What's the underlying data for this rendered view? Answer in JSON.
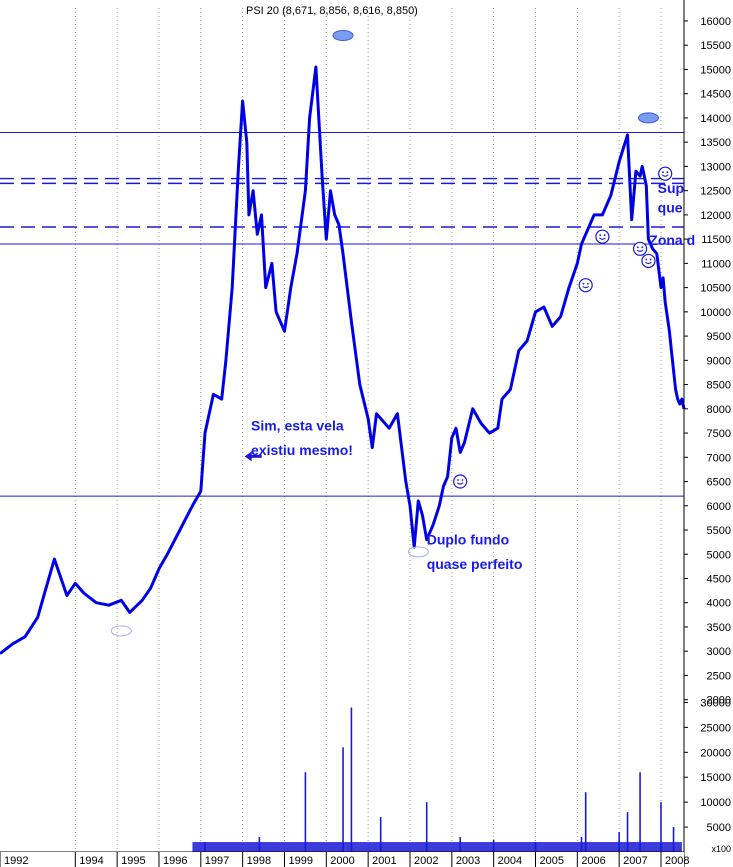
{
  "chart_data": {
    "type": "line",
    "title": "PSI 20 (8,671, 8,856, 8,616, 8,850)",
    "price_axis": {
      "ylim": [
        2200,
        16350
      ],
      "ticks": [
        3000,
        3500,
        4000,
        4500,
        5000,
        5500,
        6000,
        6500,
        7000,
        7500,
        8000,
        8500,
        9000,
        9500,
        10000,
        10500,
        11000,
        11500,
        12000,
        12500,
        13000,
        13500,
        14000,
        14500,
        15000,
        15500,
        16000
      ]
    },
    "volume_axis": {
      "unit_label": "x100",
      "ticks": [
        5000,
        10000,
        15000,
        20000,
        25000,
        30000
      ],
      "extra_ticks": [
        2000,
        2500
      ]
    },
    "x_axis": {
      "range": [
        1992.0,
        2008.35
      ],
      "year_labels": [
        "1992",
        "1994",
        "1995",
        "1996",
        "1997",
        "1998",
        "1999",
        "2000",
        "2001",
        "2002",
        "2003",
        "2004",
        "2005",
        "2006",
        "2007",
        "2008"
      ],
      "year_positions": [
        1992,
        1993.8,
        1994.8,
        1995.8,
        1996.8,
        1997.8,
        1998.8,
        1999.8,
        2000.8,
        2001.8,
        2002.8,
        2003.8,
        2004.8,
        2005.8,
        2006.8,
        2007.8
      ]
    },
    "series": [
      {
        "color": "#0000ff",
        "x": [
          1992.0,
          1992.3,
          1992.6,
          1992.9,
          1993.1,
          1993.3,
          1993.6,
          1993.8,
          1994.0,
          1994.3,
          1994.6,
          1994.9,
          1995.1,
          1995.4,
          1995.6,
          1995.8,
          1996.0,
          1996.3,
          1996.6,
          1996.8,
          1996.9,
          1997.1,
          1997.3,
          1997.4,
          1997.55,
          1997.7,
          1997.8,
          1997.9,
          1997.95,
          1998.05,
          1998.15,
          1998.25,
          1998.35,
          1998.5,
          1998.6,
          1998.8,
          1998.95,
          1999.1,
          1999.3,
          1999.4,
          1999.55,
          1999.7,
          1999.8,
          1999.9,
          2000.0,
          2000.1,
          2000.2,
          2000.3,
          2000.4,
          2000.6,
          2000.8,
          2000.9,
          2001.0,
          2001.1,
          2001.3,
          2001.5,
          2001.7,
          2001.8,
          2001.9,
          2002.0,
          2002.1,
          2002.2,
          2002.35,
          2002.5,
          2002.6,
          2002.7,
          2002.8,
          2002.9,
          2003.0,
          2003.1,
          2003.3,
          2003.5,
          2003.7,
          2003.9,
          2004.0,
          2004.2,
          2004.4,
          2004.6,
          2004.8,
          2005.0,
          2005.2,
          2005.4,
          2005.6,
          2005.8,
          2005.9,
          2006.0,
          2006.1,
          2006.2,
          2006.4,
          2006.6,
          2006.8,
          2007.0,
          2007.1,
          2007.2,
          2007.3,
          2007.35,
          2007.4,
          2007.45,
          2007.5,
          2007.6,
          2007.7,
          2007.8,
          2007.85,
          2007.9,
          2007.95,
          2008.0,
          2008.05,
          2008.1,
          2008.15,
          2008.2,
          2008.25,
          2008.3,
          2008.35
        ],
        "y": [
          2950,
          3150,
          3300,
          3700,
          4300,
          4900,
          4150,
          4400,
          4200,
          4000,
          3950,
          4050,
          3800,
          4050,
          4300,
          4700,
          5000,
          5500,
          6000,
          6300,
          7500,
          8300,
          8200,
          9000,
          10500,
          13000,
          14350,
          13500,
          12000,
          12500,
          11600,
          12000,
          10500,
          11000,
          10000,
          9600,
          10500,
          11200,
          12500,
          14000,
          15050,
          12800,
          11500,
          12500,
          12000,
          11800,
          11200,
          10500,
          9800,
          8500,
          7800,
          7200,
          7900,
          7800,
          7600,
          7900,
          6500,
          6000,
          5150,
          6100,
          5800,
          5300,
          5600,
          6000,
          6400,
          6600,
          7400,
          7600,
          7100,
          7300,
          8000,
          7700,
          7500,
          7600,
          8200,
          8400,
          9200,
          9400,
          10000,
          10100,
          9700,
          9900,
          10500,
          11000,
          11400,
          11600,
          11800,
          12000,
          12000,
          12400,
          13100,
          13650,
          11900,
          12900,
          12800,
          13000,
          12800,
          12600,
          11500,
          11300,
          11200,
          10500,
          10700,
          10200,
          9900,
          9600,
          9200,
          8800,
          8400,
          8200,
          8100,
          8200,
          8000
        ]
      }
    ],
    "volume": {
      "x": [
        1996.9,
        1998.2,
        1999.3,
        2000.2,
        2000.4,
        2001.1,
        2002.2,
        2003.0,
        2003.8,
        2004.8,
        2005.9,
        2006.0,
        2006.8,
        2007.0,
        2007.3,
        2007.8,
        2008.1
      ],
      "values": [
        2000,
        3000,
        16000,
        21000,
        29000,
        7000,
        10000,
        3000,
        2500,
        2000,
        3000,
        12000,
        4000,
        8000,
        16000,
        10000,
        5000
      ],
      "base_level": 2000
    },
    "horizontal_lines": {
      "solid": [
        13700,
        11400,
        6200
      ],
      "dashed": [
        12750,
        12650,
        11750
      ]
    },
    "annotations": [
      {
        "text": "Sim, esta vela",
        "x": 1998.0,
        "y": 7550
      },
      {
        "text": "existiu mesmo!",
        "x": 1998.0,
        "y": 7050
      },
      {
        "text": "Duplo fundo",
        "x": 2002.2,
        "y": 5200
      },
      {
        "text": "quase perfeito",
        "x": 2002.2,
        "y": 4700
      },
      {
        "text": "Sup",
        "x": 2007.72,
        "y": 12450
      },
      {
        "text": "que",
        "x": 2007.72,
        "y": 12050
      },
      {
        "text": "Zona d",
        "x": 2007.52,
        "y": 11380
      }
    ],
    "arrow": {
      "x": 1997.92,
      "y": 7020
    },
    "bull_icons": [
      {
        "x": 2000.2,
        "y": 15700
      },
      {
        "x": 2007.5,
        "y": 14000
      }
    ],
    "bear_icons": [
      {
        "x": 1994.9,
        "y": 3420
      },
      {
        "x": 2002.0,
        "y": 5050
      }
    ],
    "smiley_icons": [
      {
        "x": 2003.0,
        "y": 6500
      },
      {
        "x": 2006.0,
        "y": 10550
      },
      {
        "x": 2006.4,
        "y": 11550
      },
      {
        "x": 2007.3,
        "y": 11300
      },
      {
        "x": 2007.5,
        "y": 11050
      },
      {
        "x": 2007.9,
        "y": 12850
      }
    ]
  }
}
